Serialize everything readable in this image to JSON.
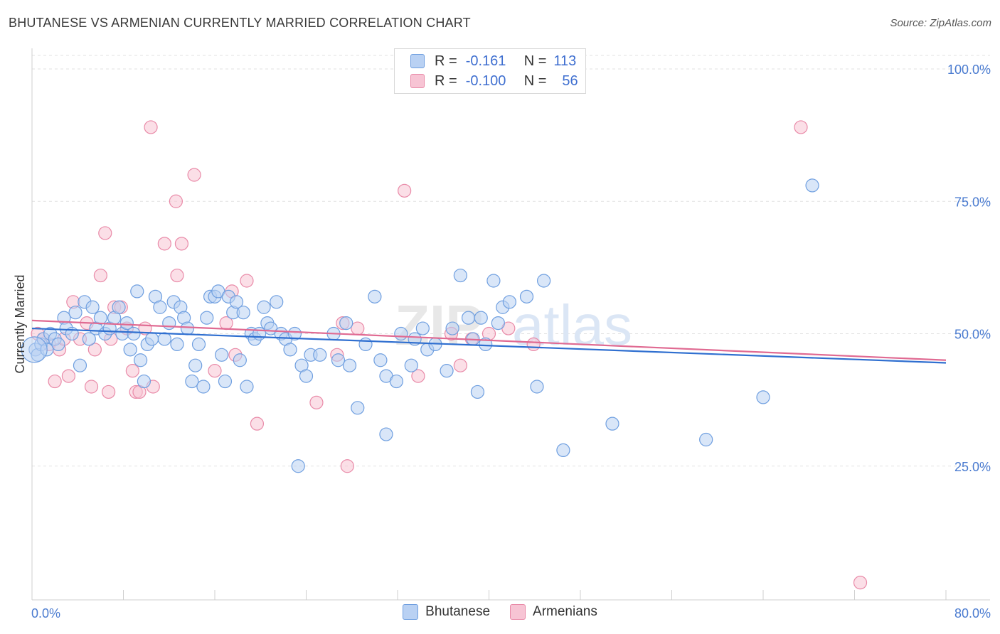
{
  "header": {
    "title": "BHUTANESE VS ARMENIAN CURRENTLY MARRIED CORRELATION CHART",
    "source": "Source: ZipAtlas.com"
  },
  "colors": {
    "blue": "#6f9fe0",
    "blue_fill": "#b9d1f3",
    "blue_line": "#2f6fd0",
    "pink": "#e98aa8",
    "pink_fill": "#f7c4d4",
    "pink_line": "#e06a92",
    "tick_text": "#4a7bd0"
  },
  "legend": {
    "rows": [
      {
        "r_label": "R =",
        "r_value": "-0.161",
        "n_label": "N =",
        "n_value": "113"
      },
      {
        "r_label": "R =",
        "r_value": "-0.100",
        "n_label": "N =",
        "n_value": "56"
      }
    ]
  },
  "bottom_legend": [
    "Bhutanese",
    "Armenians"
  ],
  "watermark": {
    "part1": "ZIP",
    "part2": "atlas"
  },
  "chart_data": {
    "type": "scatter",
    "title": "BHUTANESE VS ARMENIAN CURRENTLY MARRIED CORRELATION CHART",
    "ylabel": "Currently Married",
    "xlabel": "",
    "xlim": [
      0,
      80
    ],
    "ylim": [
      0,
      100
    ],
    "x_tick_labels": [
      "0.0%",
      "80.0%"
    ],
    "y_tick_labels": [
      "100.0%",
      "75.0%",
      "50.0%",
      "25.0%"
    ],
    "y_ticks": [
      100,
      75,
      50,
      25
    ],
    "grid": true,
    "legend_position": "top-center",
    "series": [
      {
        "name": "Bhutanese",
        "R": -0.161,
        "N": 113,
        "trend": {
          "x": [
            0,
            80
          ],
          "y": [
            51.0,
            44.5
          ]
        },
        "points": [
          [
            0.3,
            47
          ],
          [
            0.5,
            46
          ],
          [
            0.8,
            48
          ],
          [
            1,
            49
          ],
          [
            1.3,
            47
          ],
          [
            1.6,
            50
          ],
          [
            2,
            49
          ],
          [
            2.3,
            48
          ],
          [
            2.8,
            53
          ],
          [
            3,
            51
          ],
          [
            3.5,
            50
          ],
          [
            3.8,
            54
          ],
          [
            4.2,
            44
          ],
          [
            4.6,
            56
          ],
          [
            5,
            49
          ],
          [
            5.3,
            55
          ],
          [
            5.6,
            51
          ],
          [
            6,
            53
          ],
          [
            6.4,
            50
          ],
          [
            6.8,
            51
          ],
          [
            7.2,
            53
          ],
          [
            7.6,
            55
          ],
          [
            7.9,
            50
          ],
          [
            8.3,
            52
          ],
          [
            8.6,
            47
          ],
          [
            8.9,
            50
          ],
          [
            9.2,
            58
          ],
          [
            9.5,
            45
          ],
          [
            9.8,
            41
          ],
          [
            10.1,
            48
          ],
          [
            10.5,
            49
          ],
          [
            10.8,
            57
          ],
          [
            11.2,
            55
          ],
          [
            11.6,
            49
          ],
          [
            12,
            52
          ],
          [
            12.4,
            56
          ],
          [
            12.7,
            48
          ],
          [
            13,
            55
          ],
          [
            13.3,
            53
          ],
          [
            13.6,
            51
          ],
          [
            14,
            41
          ],
          [
            14.3,
            44
          ],
          [
            14.6,
            48
          ],
          [
            15,
            40
          ],
          [
            15.3,
            53
          ],
          [
            15.6,
            57
          ],
          [
            16,
            57
          ],
          [
            16.3,
            58
          ],
          [
            16.6,
            46
          ],
          [
            16.9,
            41
          ],
          [
            17.2,
            57
          ],
          [
            17.6,
            54
          ],
          [
            17.9,
            56
          ],
          [
            18.2,
            45
          ],
          [
            18.5,
            54
          ],
          [
            18.8,
            40
          ],
          [
            19.2,
            50
          ],
          [
            19.5,
            49
          ],
          [
            19.9,
            50
          ],
          [
            20.3,
            55
          ],
          [
            20.6,
            52
          ],
          [
            20.9,
            51
          ],
          [
            21.4,
            56
          ],
          [
            21.8,
            50
          ],
          [
            22.2,
            49
          ],
          [
            22.6,
            47
          ],
          [
            23,
            50
          ],
          [
            23.3,
            25
          ],
          [
            23.6,
            44
          ],
          [
            24,
            42
          ],
          [
            24.4,
            46
          ],
          [
            25.2,
            46
          ],
          [
            26.4,
            50
          ],
          [
            26.8,
            45
          ],
          [
            27.5,
            52
          ],
          [
            27.8,
            44
          ],
          [
            28.5,
            36
          ],
          [
            29.2,
            48
          ],
          [
            30,
            57
          ],
          [
            30.5,
            45
          ],
          [
            31,
            31
          ],
          [
            31,
            42
          ],
          [
            31.9,
            41
          ],
          [
            32.3,
            50
          ],
          [
            33.2,
            44
          ],
          [
            33.5,
            49
          ],
          [
            34.2,
            51
          ],
          [
            34.6,
            47
          ],
          [
            35.3,
            48
          ],
          [
            36.3,
            43
          ],
          [
            36.8,
            51
          ],
          [
            37.5,
            61
          ],
          [
            38.2,
            53
          ],
          [
            38.6,
            49
          ],
          [
            39,
            39
          ],
          [
            39.3,
            53
          ],
          [
            39.7,
            48
          ],
          [
            40.4,
            60
          ],
          [
            40.8,
            52
          ],
          [
            41.2,
            55
          ],
          [
            41.8,
            56
          ],
          [
            43.3,
            57
          ],
          [
            44.2,
            40
          ],
          [
            44.8,
            60
          ],
          [
            46.5,
            28
          ],
          [
            50.8,
            33
          ],
          [
            59,
            30
          ],
          [
            64,
            38
          ],
          [
            68.3,
            78
          ]
        ]
      },
      {
        "name": "Armenians",
        "R": -0.1,
        "N": 56,
        "trend": {
          "x": [
            0,
            80
          ],
          "y": [
            52.5,
            45.0
          ]
        },
        "points": [
          [
            0.5,
            50
          ],
          [
            1,
            49
          ],
          [
            1.5,
            48
          ],
          [
            2,
            41
          ],
          [
            2.4,
            47
          ],
          [
            2.8,
            49
          ],
          [
            3.2,
            42
          ],
          [
            3.6,
            56
          ],
          [
            4.2,
            49
          ],
          [
            4.8,
            52
          ],
          [
            5.2,
            40
          ],
          [
            5.5,
            47
          ],
          [
            6,
            61
          ],
          [
            6.4,
            69
          ],
          [
            6.7,
            39
          ],
          [
            6.9,
            49
          ],
          [
            7.2,
            55
          ],
          [
            7.8,
            55
          ],
          [
            8.3,
            51
          ],
          [
            8.8,
            43
          ],
          [
            9.1,
            39
          ],
          [
            9.4,
            39
          ],
          [
            9.9,
            51
          ],
          [
            10.4,
            89
          ],
          [
            10.6,
            40
          ],
          [
            11.6,
            67
          ],
          [
            12.6,
            75
          ],
          [
            12.7,
            61
          ],
          [
            13.1,
            67
          ],
          [
            14.2,
            80
          ],
          [
            16,
            43
          ],
          [
            17,
            52
          ],
          [
            17.5,
            58
          ],
          [
            17.8,
            46
          ],
          [
            18.8,
            60
          ],
          [
            19.7,
            33
          ],
          [
            24.9,
            37
          ],
          [
            26.7,
            46
          ],
          [
            27.2,
            52
          ],
          [
            27.6,
            25
          ],
          [
            28.5,
            51
          ],
          [
            32.6,
            77
          ],
          [
            33.8,
            42
          ],
          [
            36.7,
            50
          ],
          [
            37.5,
            44
          ],
          [
            38.5,
            49
          ],
          [
            40,
            50
          ],
          [
            41.7,
            51
          ],
          [
            43.9,
            48
          ],
          [
            67.3,
            89
          ],
          [
            72.5,
            3
          ]
        ]
      }
    ]
  }
}
